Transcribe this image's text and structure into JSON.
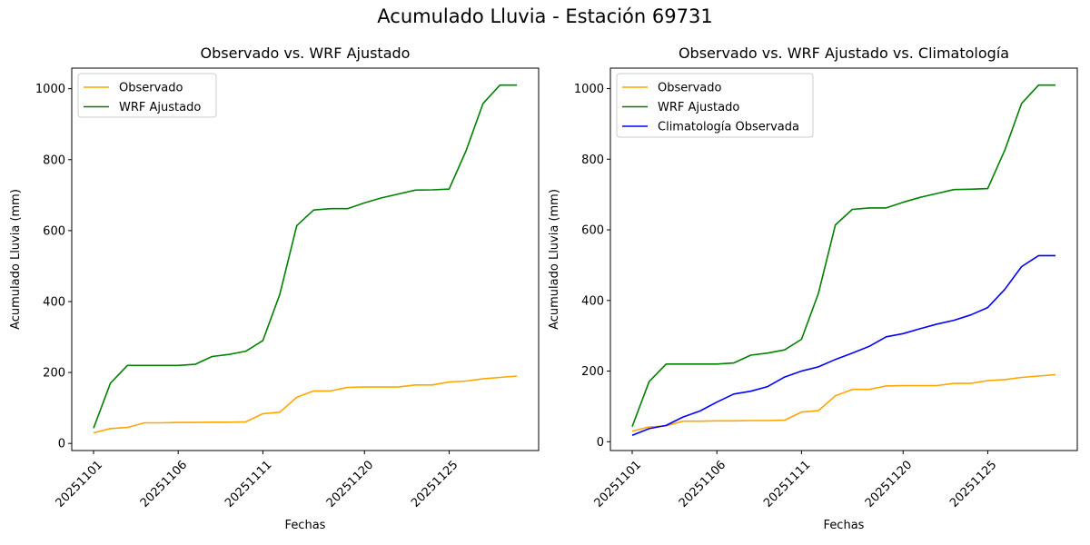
{
  "figure": {
    "suptitle": "Acumulado Lluvia - Estación 69731"
  },
  "chart_data": [
    {
      "type": "line",
      "title": "Observado vs. WRF Ajustado",
      "xlabel": "Fechas",
      "ylabel": "Acumulado Lluvia (mm)",
      "x": [
        "20251101",
        "20251102",
        "20251103",
        "20251104",
        "20251105",
        "20251106",
        "20251107",
        "20251108",
        "20251109",
        "20251110",
        "20251111",
        "20251112",
        "20251113",
        "20251114",
        "20251115",
        "20251116",
        "20251120",
        "20251121",
        "20251122",
        "20251123",
        "20251124",
        "20251125",
        "20251126",
        "20251127",
        "20251128",
        "20251129"
      ],
      "xticks": [
        "20251101",
        "20251106",
        "20251111",
        "20251120",
        "20251125"
      ],
      "yticks": [
        0,
        200,
        400,
        600,
        800,
        1000
      ],
      "ylim": [
        -20,
        1058
      ],
      "grid": false,
      "legend_position": "top-left",
      "series": [
        {
          "name": "Observado",
          "color": "#ffa500",
          "values": [
            30,
            42,
            45,
            58,
            58,
            59,
            59,
            60,
            60,
            61,
            84,
            88,
            130,
            148,
            148,
            158,
            159,
            159,
            159,
            165,
            165,
            173,
            176,
            182,
            186,
            190
          ]
        },
        {
          "name": "WRF Ajustado",
          "color": "#008000",
          "values": [
            43,
            170,
            220,
            220,
            220,
            220,
            223,
            245,
            251,
            260,
            290,
            420,
            614,
            658,
            662,
            662,
            678,
            692,
            703,
            714,
            715,
            717,
            825,
            958,
            1010,
            1010
          ]
        }
      ]
    },
    {
      "type": "line",
      "title": "Observado vs. WRF Ajustado vs. Climatología",
      "xlabel": "Fechas",
      "ylabel": "Acumulado Lluvia (mm)",
      "x": [
        "20251101",
        "20251102",
        "20251103",
        "20251104",
        "20251105",
        "20251106",
        "20251107",
        "20251108",
        "20251109",
        "20251110",
        "20251111",
        "20251112",
        "20251113",
        "20251114",
        "20251115",
        "20251116",
        "20251120",
        "20251121",
        "20251122",
        "20251123",
        "20251124",
        "20251125",
        "20251126",
        "20251127",
        "20251128",
        "20251129"
      ],
      "xticks": [
        "20251101",
        "20251106",
        "20251111",
        "20251120",
        "20251125"
      ],
      "yticks": [
        0,
        200,
        400,
        600,
        800,
        1000
      ],
      "ylim": [
        -25,
        1058
      ],
      "grid": false,
      "legend_position": "top-left",
      "series": [
        {
          "name": "Observado",
          "color": "#ffa500",
          "values": [
            30,
            42,
            45,
            58,
            58,
            59,
            59,
            60,
            60,
            61,
            84,
            88,
            130,
            148,
            148,
            158,
            159,
            159,
            159,
            165,
            165,
            173,
            176,
            182,
            186,
            190
          ]
        },
        {
          "name": "WRF Ajustado",
          "color": "#008000",
          "values": [
            43,
            170,
            220,
            220,
            220,
            220,
            223,
            245,
            251,
            260,
            290,
            420,
            614,
            658,
            662,
            662,
            678,
            692,
            703,
            714,
            715,
            717,
            825,
            958,
            1010,
            1010
          ]
        },
        {
          "name": "Climatología Observada",
          "color": "#0000ff",
          "values": [
            18,
            37,
            46,
            70,
            87,
            112,
            135,
            143,
            156,
            183,
            200,
            212,
            233,
            251,
            270,
            297,
            306,
            320,
            333,
            344,
            359,
            380,
            431,
            496,
            527,
            527
          ]
        }
      ]
    }
  ]
}
